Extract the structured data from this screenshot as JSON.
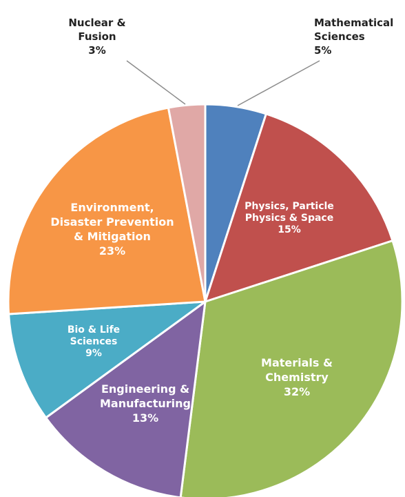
{
  "chart_data": {
    "type": "pie",
    "title": "",
    "legend": "none",
    "start": "12 o'clock, clockwise",
    "slices": [
      {
        "lines": [
          "Mathematical",
          "Sciences",
          "5%"
        ],
        "value": 5,
        "color": "#4f81bd",
        "label_color": "#222222",
        "label_position": "outside"
      },
      {
        "lines": [
          "Physics, Particle",
          "Physics & Space",
          "15%"
        ],
        "value": 15,
        "color": "#c0504d",
        "label_color": "#ffffff",
        "label_position": "inside"
      },
      {
        "lines": [
          "Materials &",
          "Chemistry",
          "32%"
        ],
        "value": 32,
        "color": "#9bbb59",
        "label_color": "#ffffff",
        "label_position": "inside"
      },
      {
        "lines": [
          "Engineering &",
          "Manufacturing",
          "13%"
        ],
        "value": 13,
        "color": "#8064a2",
        "label_color": "#ffffff",
        "label_position": "inside"
      },
      {
        "lines": [
          "Bio & Life",
          "Sciences",
          "9%"
        ],
        "value": 9,
        "color": "#4bacc6",
        "label_color": "#ffffff",
        "label_position": "inside"
      },
      {
        "lines": [
          "Environment,",
          "Disaster Prevention",
          "& Mitigation",
          "23%"
        ],
        "value": 23,
        "color": "#f79646",
        "label_color": "#ffffff",
        "label_position": "inside"
      },
      {
        "lines": [
          "Nuclear &",
          "Fusion",
          "3%"
        ],
        "value": 3,
        "color": "#e0a8a6",
        "label_color": "#222222",
        "label_position": "outside"
      }
    ]
  }
}
